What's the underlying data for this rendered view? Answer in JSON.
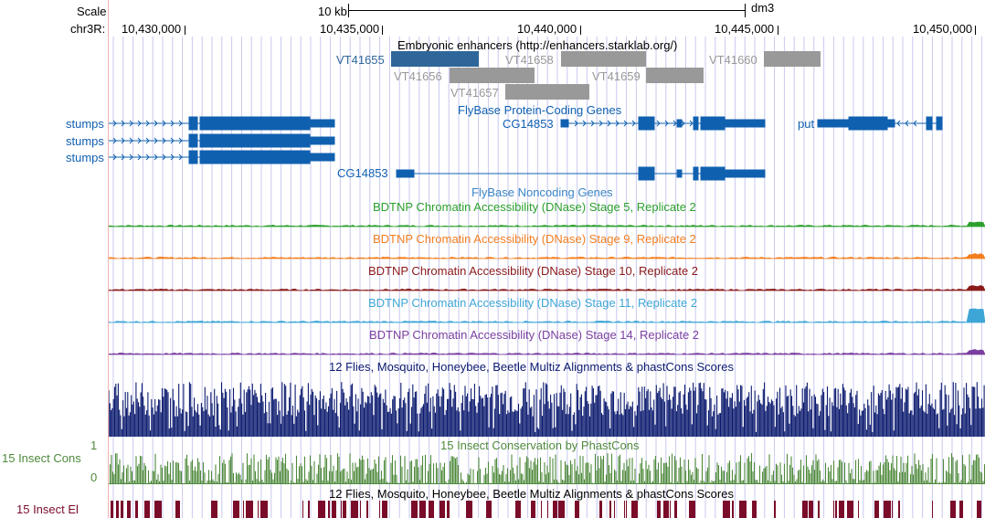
{
  "header": {
    "scale_label": "Scale",
    "scale_value": "10 kb",
    "assembly": "dm3",
    "chrom_label": "chr3R:",
    "ticks": [
      "10,430,000",
      "10,435,000",
      "10,440,000",
      "10,445,000",
      "10,450,000"
    ]
  },
  "tracks": {
    "enhancers": {
      "title": "Embryonic enhancers (http://enhancers.starklab.org/)",
      "items": [
        {
          "name": "VT41655",
          "highlight": true
        },
        {
          "name": "VT41656",
          "highlight": false
        },
        {
          "name": "VT41657",
          "highlight": false
        },
        {
          "name": "VT41658",
          "highlight": false
        },
        {
          "name": "VT41659",
          "highlight": false
        },
        {
          "name": "VT41660",
          "highlight": false
        }
      ]
    },
    "protein_coding": {
      "title": "FlyBase Protein-Coding Genes",
      "genes": [
        "stumps",
        "stumps",
        "stumps",
        "CG14853",
        "put"
      ]
    },
    "noncoding": {
      "title": "FlyBase Noncoding Genes",
      "genes": [
        "CG14853"
      ]
    },
    "dnase": [
      {
        "title": "BDTNP Chromatin Accessibility (DNase) Stage 5, Replicate 2",
        "color": "#2ca02c"
      },
      {
        "title": "BDTNP Chromatin Accessibility (DNase) Stage 9, Replicate 2",
        "color": "#f47e1f"
      },
      {
        "title": "BDTNP Chromatin Accessibility (DNase) Stage 10, Replicate 2",
        "color": "#8b1a1a"
      },
      {
        "title": "BDTNP Chromatin Accessibility (DNase) Stage 11, Replicate 2",
        "color": "#3ea6d6"
      },
      {
        "title": "BDTNP Chromatin Accessibility (DNase) Stage 14, Replicate 2",
        "color": "#7b3fa0"
      }
    ],
    "multiz": {
      "title": "12 Flies, Mosquito, Honeybee, Beetle Multiz Alignments & phastCons Scores",
      "color": "#0b1a6e"
    },
    "conservation": {
      "title": "15 Insect Conservation by PhastCons",
      "side_label": "15 Insect Cons",
      "y_max": "1",
      "y_min": "0",
      "color": "#4f8a3c"
    },
    "elements": {
      "title": "12 Flies, Mosquito, Honeybee, Beetle Multiz Alignments & phastCons Scores",
      "side_label": "15 Insect El",
      "color": "#7a0c2a"
    }
  },
  "colors": {
    "gene": "#1060b0",
    "enhancer_grey": "#999999",
    "enhancer_blue": "#2e6699",
    "grid": "#c8c8f0",
    "left_rule": "#f0a0a0"
  }
}
